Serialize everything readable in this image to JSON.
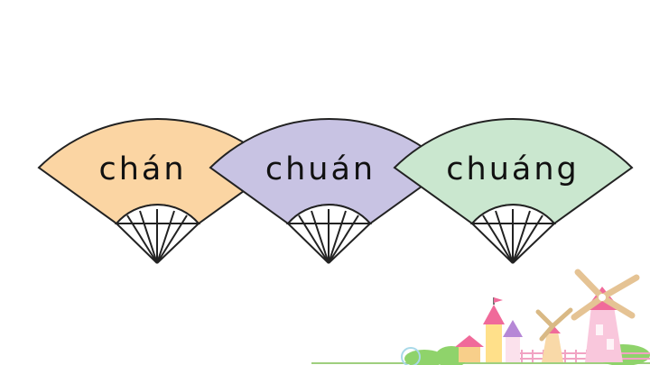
{
  "fans": [
    {
      "syllable": "chán",
      "color": "#fbd5a3"
    },
    {
      "syllable": "chuán",
      "color": "#c8c3e3"
    },
    {
      "syllable": "chuáng",
      "color": "#cae7cf"
    }
  ],
  "scenery": {
    "icons": [
      "windmill-icon",
      "house-icon",
      "flag-icon",
      "fence-icon",
      "bush-icon"
    ],
    "colors": {
      "roof": "#f06a9a",
      "wall": "#f9c7dc",
      "grass": "#8fd36b",
      "sail": "#f1d6a8"
    }
  }
}
